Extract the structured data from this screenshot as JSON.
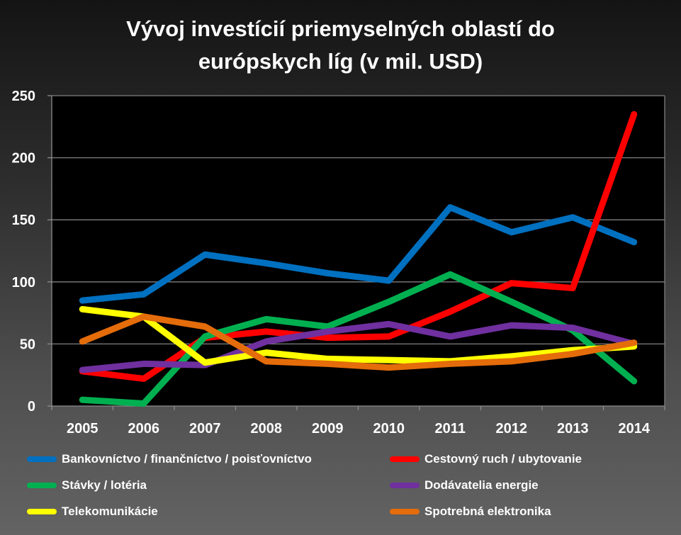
{
  "title_line1": "Vývoj investícií priemyselných oblastí do",
  "title_line2": "európskych líg (v mil. USD)",
  "chart_data": {
    "type": "line",
    "title": "Vývoj investícií priemyselných oblastí do európskych líg (v mil. USD)",
    "xlabel": "",
    "ylabel": "",
    "categories": [
      "2005",
      "2006",
      "2007",
      "2008",
      "2009",
      "2010",
      "2011",
      "2012",
      "2013",
      "2014"
    ],
    "yticks": [
      "0",
      "50",
      "100",
      "150",
      "200",
      "250"
    ],
    "ylim": [
      0,
      250
    ],
    "grid": true,
    "legend_position": "bottom",
    "series": [
      {
        "name": "Bankovníctvo / finančníctvo / poisťovníctvo",
        "color": "#0070C0",
        "values": [
          85,
          90,
          122,
          115,
          107,
          101,
          160,
          140,
          152,
          132
        ]
      },
      {
        "name": "Cestovný ruch / ubytovanie",
        "color": "#FF0000",
        "values": [
          28,
          22,
          55,
          60,
          55,
          56,
          76,
          99,
          95,
          235
        ]
      },
      {
        "name": "Stávky / lotéria",
        "color": "#00B050",
        "values": [
          5,
          2,
          56,
          70,
          64,
          84,
          106,
          84,
          61,
          20
        ]
      },
      {
        "name": "Dodávatelia energie",
        "color": "#7030A0",
        "values": [
          29,
          34,
          33,
          52,
          60,
          66,
          56,
          65,
          63,
          50
        ]
      },
      {
        "name": "Telekomunikácie",
        "color": "#FFFF00",
        "values": [
          78,
          72,
          35,
          43,
          38,
          37,
          36,
          40,
          45,
          48
        ]
      },
      {
        "name": "Spotrebná elektronika",
        "color": "#E46C0A",
        "values": [
          52,
          72,
          64,
          36,
          34,
          31,
          34,
          36,
          42,
          51
        ]
      }
    ]
  }
}
